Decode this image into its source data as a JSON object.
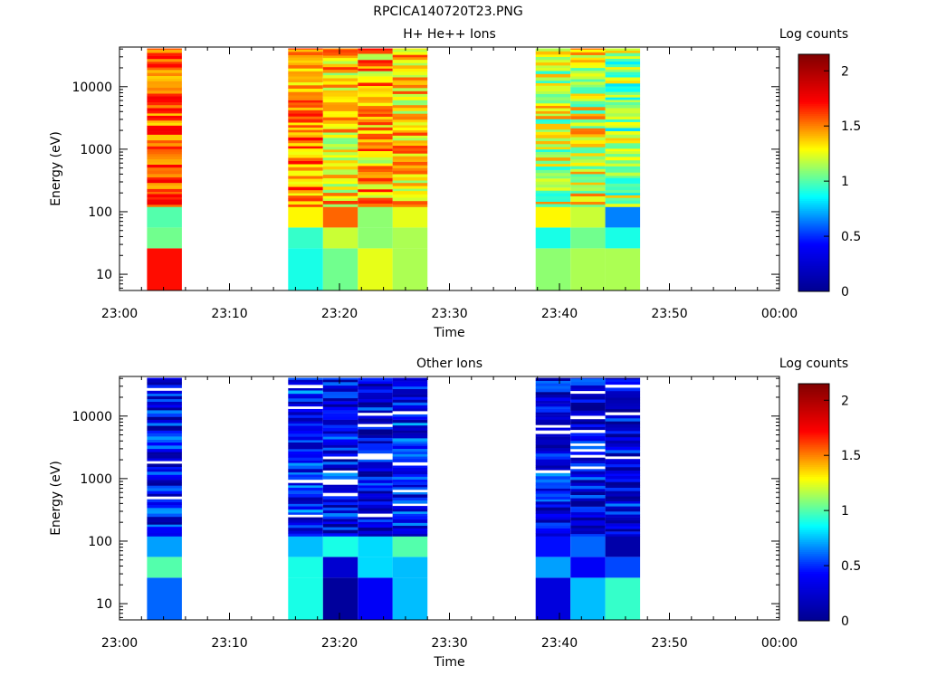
{
  "page": {
    "title": "RPCICA140720T23.PNG"
  },
  "colorscale": {
    "stops": [
      "#00008f",
      "#0000ff",
      "#00ffff",
      "#ffff00",
      "#ff0000",
      "#800000"
    ],
    "range": [
      0,
      2.15
    ]
  },
  "chart_data": [
    {
      "type": "heatmap",
      "title": "H+ He++ Ions",
      "xlabel": "Time",
      "ylabel": "Energy (eV)",
      "colorbar_label": "Log counts",
      "x_ticks": [
        "23:00",
        "23:10",
        "23:20",
        "23:30",
        "23:40",
        "23:50",
        "00:00"
      ],
      "xlim": [
        "23:00",
        "00:00"
      ],
      "y_ticks": [
        "10",
        "100",
        "1000",
        "10000"
      ],
      "y_tick_values": [
        10,
        100,
        1000,
        10000
      ],
      "yscale": "log",
      "ylim": [
        5.5,
        43000
      ],
      "colorbar_ticks": [
        "0",
        "0.5",
        "1",
        "1.5",
        "2"
      ],
      "colorbar_tick_values": [
        0,
        0.5,
        1,
        1.5,
        2
      ],
      "sweeps": [
        {
          "start": "23:02:30",
          "end": "23:05:40",
          "seed": 11,
          "base": 1.55,
          "spread": 0.22,
          "low": [
            1.7,
            1.05,
            1.0
          ]
        },
        {
          "start": "23:15:20",
          "end": "23:18:30",
          "seed": 21,
          "base": 1.5,
          "spread": 0.25,
          "low": [
            0.9,
            0.95,
            1.3
          ]
        },
        {
          "start": "23:18:30",
          "end": "23:21:40",
          "seed": 22,
          "base": 1.35,
          "spread": 0.3,
          "low": [
            1.05,
            1.2,
            1.55
          ]
        },
        {
          "start": "23:21:40",
          "end": "23:24:50",
          "seed": 23,
          "base": 1.4,
          "spread": 0.3,
          "low": [
            1.25,
            1.1,
            1.1
          ]
        },
        {
          "start": "23:24:50",
          "end": "23:28:00",
          "seed": 24,
          "base": 1.35,
          "spread": 0.28,
          "low": [
            1.15,
            1.15,
            1.25
          ]
        },
        {
          "start": "23:37:50",
          "end": "23:41:00",
          "seed": 31,
          "base": 1.2,
          "spread": 0.3,
          "low": [
            1.1,
            0.9,
            1.3
          ]
        },
        {
          "start": "23:41:00",
          "end": "23:44:10",
          "seed": 32,
          "base": 1.25,
          "spread": 0.3,
          "low": [
            1.15,
            1.05,
            1.2
          ]
        },
        {
          "start": "23:44:10",
          "end": "23:47:20",
          "seed": 33,
          "base": 1.1,
          "spread": 0.3,
          "low": [
            1.15,
            0.9,
            0.65
          ]
        }
      ]
    },
    {
      "type": "heatmap",
      "title": "Other Ions",
      "xlabel": "Time",
      "ylabel": "Energy (eV)",
      "colorbar_label": "Log counts",
      "x_ticks": [
        "23:00",
        "23:10",
        "23:20",
        "23:30",
        "23:40",
        "23:50",
        "00:00"
      ],
      "xlim": [
        "23:00",
        "00:00"
      ],
      "y_ticks": [
        "10",
        "100",
        "1000",
        "10000"
      ],
      "y_tick_values": [
        10,
        100,
        1000,
        10000
      ],
      "yscale": "log",
      "ylim": [
        5.5,
        43000
      ],
      "colorbar_ticks": [
        "0",
        "0.5",
        "1",
        "1.5",
        "2"
      ],
      "colorbar_tick_values": [
        0,
        0.5,
        1,
        1.5,
        2
      ],
      "sweeps": [
        {
          "start": "23:02:30",
          "end": "23:05:40",
          "seed": 41,
          "base": 0.35,
          "spread": 0.35,
          "low": [
            0.6,
            1.0,
            0.7
          ]
        },
        {
          "start": "23:15:20",
          "end": "23:18:30",
          "seed": 51,
          "base": 0.4,
          "spread": 0.35,
          "low": [
            0.9,
            0.9,
            0.75
          ]
        },
        {
          "start": "23:18:30",
          "end": "23:21:40",
          "seed": 52,
          "base": 0.35,
          "spread": 0.35,
          "low": [
            0.05,
            0.25,
            0.9
          ]
        },
        {
          "start": "23:21:40",
          "end": "23:24:50",
          "seed": 53,
          "base": 0.3,
          "spread": 0.35,
          "low": [
            0.4,
            0.8,
            0.8
          ]
        },
        {
          "start": "23:24:50",
          "end": "23:28:00",
          "seed": 54,
          "base": 0.4,
          "spread": 0.35,
          "low": [
            0.75,
            0.75,
            1.0
          ]
        },
        {
          "start": "23:37:50",
          "end": "23:41:00",
          "seed": 61,
          "base": 0.35,
          "spread": 0.35,
          "low": [
            0.3,
            0.7,
            0.45
          ]
        },
        {
          "start": "23:41:00",
          "end": "23:44:10",
          "seed": 62,
          "base": 0.3,
          "spread": 0.35,
          "low": [
            0.75,
            0.4,
            0.6
          ]
        },
        {
          "start": "23:44:10",
          "end": "23:47:20",
          "seed": 63,
          "base": 0.3,
          "spread": 0.35,
          "low": [
            0.95,
            0.55,
            0.1
          ]
        }
      ]
    }
  ]
}
